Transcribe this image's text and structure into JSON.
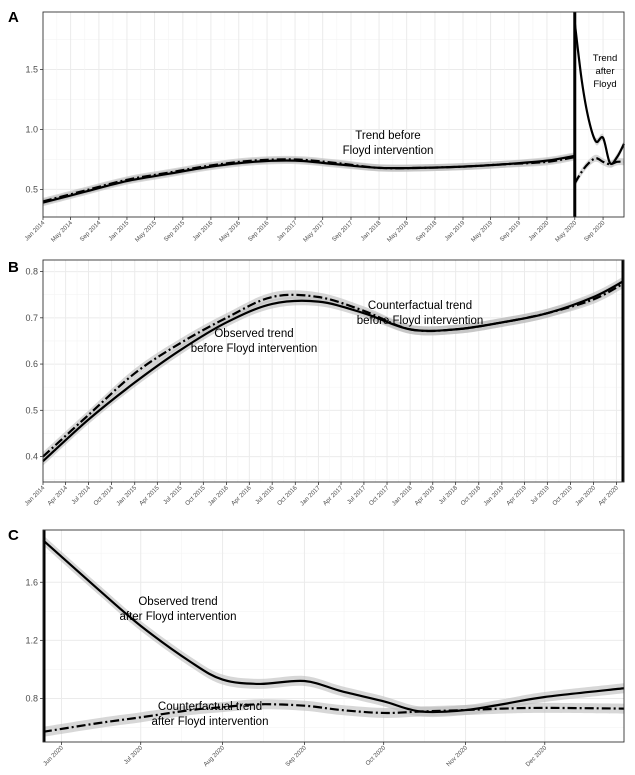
{
  "chart_data": [
    {
      "panel": "A",
      "type": "line",
      "x_ticks": [
        "Jan 2014",
        "May 2014",
        "Sep 2014",
        "Jan 2015",
        "May 2015",
        "Sep 2015",
        "Jan 2016",
        "May 2016",
        "Sep 2016",
        "Jan 2017",
        "May 2017",
        "Sep 2017",
        "Jan 2018",
        "May 2018",
        "Sep 2018",
        "Jan 2019",
        "May 2019",
        "Sep 2019",
        "Jan 2020",
        "May 2020",
        "Sep 2020"
      ],
      "y_ticks": [
        "0.5",
        "1.0",
        "1.5"
      ],
      "xlim": [
        "2014-01",
        "2020-12"
      ],
      "ylim": [
        0.27,
        1.98
      ],
      "intervention": "2020-05",
      "annotations": [
        {
          "lines": [
            "Trend before",
            "Floyd intervention"
          ]
        },
        {
          "lines": [
            "Trend",
            "after",
            "Floyd"
          ]
        }
      ],
      "series": [
        {
          "style": "solid",
          "points": [
            [
              "2014-01",
              0.39
            ],
            [
              "2014-07",
              0.48
            ],
            [
              "2015-01",
              0.57
            ],
            [
              "2015-07",
              0.63
            ],
            [
              "2016-01",
              0.69
            ],
            [
              "2016-07",
              0.73
            ],
            [
              "2017-01",
              0.74
            ],
            [
              "2017-07",
              0.71
            ],
            [
              "2018-01",
              0.68
            ],
            [
              "2018-07",
              0.68
            ],
            [
              "2019-01",
              0.69
            ],
            [
              "2019-07",
              0.71
            ],
            [
              "2020-01",
              0.74
            ],
            [
              "2020-05",
              0.78
            ]
          ]
        },
        {
          "style": "dashed",
          "points": [
            [
              "2014-01",
              0.4
            ],
            [
              "2014-07",
              0.49
            ],
            [
              "2015-01",
              0.58
            ],
            [
              "2015-07",
              0.64
            ],
            [
              "2016-01",
              0.7
            ],
            [
              "2016-07",
              0.74
            ],
            [
              "2017-01",
              0.75
            ],
            [
              "2017-07",
              0.72
            ],
            [
              "2018-01",
              0.68
            ],
            [
              "2018-07",
              0.68
            ],
            [
              "2019-01",
              0.69
            ],
            [
              "2019-07",
              0.71
            ],
            [
              "2020-01",
              0.73
            ],
            [
              "2020-05",
              0.77
            ]
          ]
        },
        {
          "style": "solid",
          "points": [
            [
              "2020-05",
              1.89
            ],
            [
              "2020-06",
              1.4
            ],
            [
              "2020-07",
              1.08
            ],
            [
              "2020-08",
              0.9
            ],
            [
              "2020-09",
              0.93
            ],
            [
              "2020-10",
              0.72
            ],
            [
              "2020-11",
              0.77
            ],
            [
              "2020-12",
              0.88
            ]
          ]
        },
        {
          "style": "dashed",
          "points": [
            [
              "2020-05",
              0.55
            ],
            [
              "2020-06",
              0.65
            ],
            [
              "2020-07",
              0.72
            ],
            [
              "2020-08",
              0.76
            ],
            [
              "2020-09",
              0.73
            ],
            [
              "2020-10",
              0.71
            ],
            [
              "2020-11",
              0.73
            ],
            [
              "2020-12",
              0.73
            ]
          ]
        }
      ]
    },
    {
      "panel": "B",
      "type": "line",
      "x_ticks": [
        "Jan 2014",
        "Apr 2014",
        "Jul 2014",
        "Oct 2014",
        "Jan 2015",
        "Apr 2015",
        "Jul 2015",
        "Oct 2015",
        "Jan 2016",
        "Apr 2016",
        "Jul 2016",
        "Oct 2016",
        "Jan 2017",
        "Apr 2017",
        "Jul 2017",
        "Oct 2017",
        "Jan 2018",
        "Apr 2018",
        "Jul 2018",
        "Oct 2018",
        "Jan 2019",
        "Apr 2019",
        "Jul 2019",
        "Oct 2019",
        "Jan 2020",
        "Apr 2020"
      ],
      "y_ticks": [
        "0.4",
        "0.5",
        "0.6",
        "0.7",
        "0.8"
      ],
      "xlim": [
        "2014-01",
        "2020-05"
      ],
      "ylim": [
        0.345,
        0.825
      ],
      "annotations": [
        {
          "lines": [
            "Counterfactual trend",
            "before Floyd intervention"
          ]
        },
        {
          "lines": [
            "Observed trend",
            "before Floyd intervention"
          ]
        }
      ],
      "series": [
        {
          "style": "solid",
          "points": [
            [
              "2014-01",
              0.39
            ],
            [
              "2014-07",
              0.48
            ],
            [
              "2015-01",
              0.56
            ],
            [
              "2015-07",
              0.63
            ],
            [
              "2016-01",
              0.69
            ],
            [
              "2016-07",
              0.73
            ],
            [
              "2017-01",
              0.735
            ],
            [
              "2017-07",
              0.71
            ],
            [
              "2018-01",
              0.675
            ],
            [
              "2018-07",
              0.675
            ],
            [
              "2019-01",
              0.69
            ],
            [
              "2019-07",
              0.71
            ],
            [
              "2020-01",
              0.745
            ],
            [
              "2020-05",
              0.78
            ]
          ]
        },
        {
          "style": "dashed",
          "points": [
            [
              "2014-01",
              0.4
            ],
            [
              "2014-07",
              0.49
            ],
            [
              "2015-01",
              0.58
            ],
            [
              "2015-07",
              0.645
            ],
            [
              "2016-01",
              0.7
            ],
            [
              "2016-07",
              0.745
            ],
            [
              "2017-01",
              0.745
            ],
            [
              "2017-07",
              0.715
            ],
            [
              "2018-01",
              0.675
            ],
            [
              "2018-07",
              0.675
            ],
            [
              "2019-01",
              0.69
            ],
            [
              "2019-07",
              0.71
            ],
            [
              "2020-01",
              0.74
            ],
            [
              "2020-05",
              0.775
            ]
          ]
        }
      ]
    },
    {
      "panel": "C",
      "type": "line",
      "x_ticks": [
        "Jun 2020",
        "Jul 2020",
        "Aug 2020",
        "Sep 2020",
        "Oct 2020",
        "Nov 2020",
        "Dec 2020"
      ],
      "y_ticks": [
        "0.8",
        "1.2",
        "1.6"
      ],
      "xlim": [
        "2020-05-25",
        "2020-12-31"
      ],
      "ylim": [
        0.5,
        1.96
      ],
      "annotations": [
        {
          "lines": [
            "Observed trend",
            "after Floyd intervention"
          ]
        },
        {
          "lines": [
            "Counterfactual trend",
            "after Floyd intervention"
          ]
        }
      ],
      "series": [
        {
          "style": "solid",
          "points": [
            [
              "2020-05-25",
              1.89
            ],
            [
              "2020-06-15",
              1.55
            ],
            [
              "2020-07-01",
              1.3
            ],
            [
              "2020-07-20",
              1.05
            ],
            [
              "2020-08-01",
              0.93
            ],
            [
              "2020-08-15",
              0.9
            ],
            [
              "2020-09-01",
              0.92
            ],
            [
              "2020-09-15",
              0.85
            ],
            [
              "2020-10-01",
              0.78
            ],
            [
              "2020-10-15",
              0.71
            ],
            [
              "2020-11-01",
              0.72
            ],
            [
              "2020-11-15",
              0.76
            ],
            [
              "2020-12-01",
              0.81
            ],
            [
              "2020-12-31",
              0.87
            ]
          ]
        },
        {
          "style": "dashed",
          "points": [
            [
              "2020-05-25",
              0.57
            ],
            [
              "2020-06-15",
              0.63
            ],
            [
              "2020-07-01",
              0.67
            ],
            [
              "2020-07-20",
              0.72
            ],
            [
              "2020-08-01",
              0.74
            ],
            [
              "2020-08-15",
              0.76
            ],
            [
              "2020-09-01",
              0.75
            ],
            [
              "2020-09-15",
              0.72
            ],
            [
              "2020-10-01",
              0.7
            ],
            [
              "2020-10-15",
              0.71
            ],
            [
              "2020-11-01",
              0.72
            ],
            [
              "2020-11-15",
              0.73
            ],
            [
              "2020-12-01",
              0.735
            ],
            [
              "2020-12-31",
              0.73
            ]
          ]
        }
      ]
    }
  ]
}
